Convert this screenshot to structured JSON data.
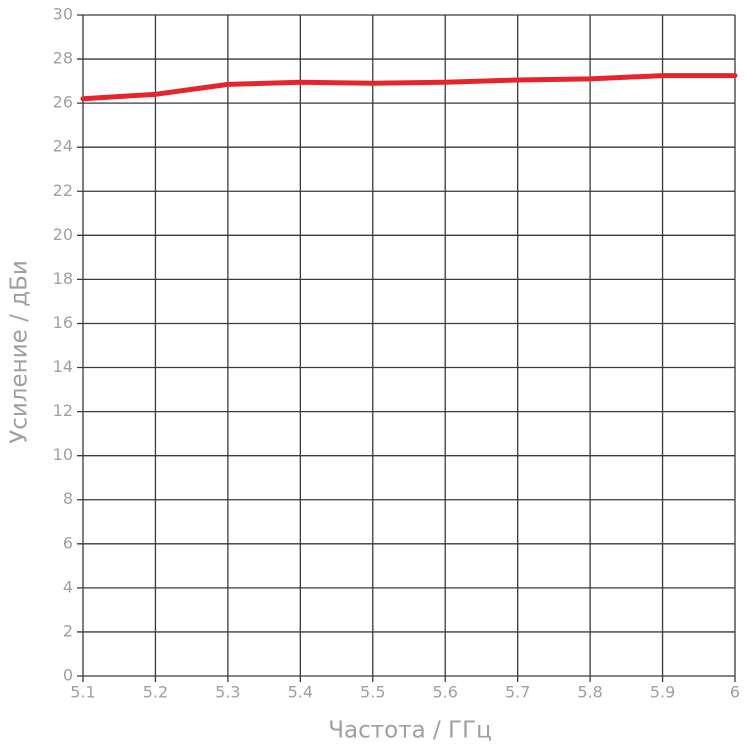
{
  "chart_data": {
    "type": "line",
    "x_label": "Частота / ГГц",
    "y_label": "Усиление / дБи",
    "x": [
      5.1,
      5.2,
      5.3,
      5.4,
      5.5,
      5.6,
      5.7,
      5.8,
      5.9,
      6
    ],
    "values": [
      26.2,
      26.4,
      26.85,
      26.95,
      26.9,
      26.95,
      27.05,
      27.1,
      27.25,
      27.25
    ],
    "color": "#e8242b",
    "xlim": [
      5.1,
      6
    ],
    "ylim": [
      0,
      30
    ],
    "xticks": [
      5.1,
      5.2,
      5.3,
      5.4,
      5.5,
      5.6,
      5.7,
      5.8,
      5.9,
      6
    ],
    "yticks": [
      0,
      2,
      4,
      6,
      8,
      10,
      12,
      14,
      16,
      18,
      20,
      22,
      24,
      26,
      28,
      30
    ],
    "grid": true
  }
}
